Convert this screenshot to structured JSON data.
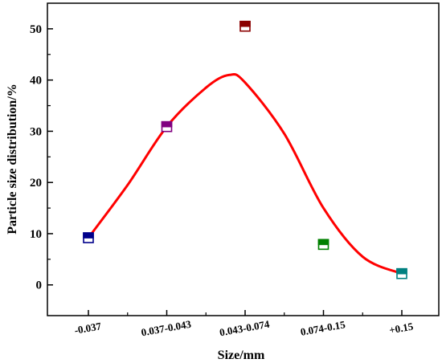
{
  "chart_data": {
    "type": "scatter",
    "title": "",
    "xlabel": "Size/mm",
    "ylabel": "Particle size distribution/%",
    "categories": [
      "-0.037",
      "0.037-0.043",
      "0.043-0.074",
      "0.074-0.15",
      "+0.15"
    ],
    "yticks": [
      "0",
      "10",
      "20",
      "30",
      "40",
      "50"
    ],
    "ylim": [
      -6,
      55
    ],
    "series": [
      {
        "values": [
          9.2,
          30.9,
          50.5,
          7.9,
          2.2
        ],
        "point_colors": [
          "#00008b",
          "#800080",
          "#8b0000",
          "#008000",
          "#008080"
        ],
        "marker": "half-filled-square"
      }
    ],
    "fit_curve": {
      "type": "smooth-line",
      "color": "#ff0000",
      "points": [
        {
          "x": 0,
          "y": 9.2
        },
        {
          "x": 0.5,
          "y": 19.5
        },
        {
          "x": 1,
          "y": 30.9
        },
        {
          "x": 1.5,
          "y": 38.5
        },
        {
          "x": 1.8,
          "y": 41.0
        },
        {
          "x": 2,
          "y": 39.5
        },
        {
          "x": 2.5,
          "y": 29.5
        },
        {
          "x": 3,
          "y": 15.0
        },
        {
          "x": 3.5,
          "y": 5.5
        },
        {
          "x": 4,
          "y": 2.2
        }
      ]
    },
    "grid": false,
    "legend": "none"
  }
}
